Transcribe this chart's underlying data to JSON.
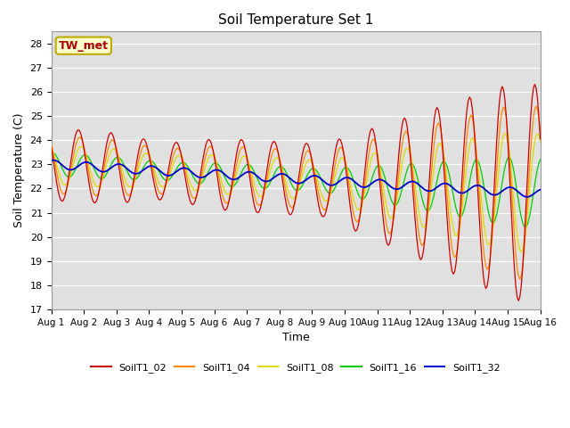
{
  "title": "Soil Temperature Set 1",
  "xlabel": "Time",
  "ylabel": "Soil Temperature (C)",
  "ylim": [
    17.0,
    28.5
  ],
  "yticks": [
    17.0,
    18.0,
    19.0,
    20.0,
    21.0,
    22.0,
    23.0,
    24.0,
    25.0,
    26.0,
    27.0,
    28.0
  ],
  "background_color": "#e0e0e0",
  "grid_color": "#ffffff",
  "annotation_text": "TW_met",
  "annotation_bg": "#ffffcc",
  "annotation_border": "#bbaa00",
  "series_colors": {
    "SoilT1_02": "#cc0000",
    "SoilT1_04": "#ff8800",
    "SoilT1_08": "#dddd00",
    "SoilT1_16": "#00cc00",
    "SoilT1_32": "#0000cc"
  },
  "n_hours": 361,
  "x_tick_labels": [
    "Aug 1",
    "Aug 2",
    "Aug 3",
    "Aug 4",
    "Aug 5",
    "Aug 6",
    "Aug 7",
    "Aug 8",
    "Aug 9",
    "Aug 10",
    "Aug 11",
    "Aug 12",
    "Aug 13",
    "Aug 14",
    "Aug 15",
    "Aug 16"
  ],
  "x_tick_positions": [
    0,
    24,
    48,
    72,
    96,
    120,
    144,
    168,
    192,
    216,
    240,
    264,
    288,
    312,
    336,
    360
  ]
}
